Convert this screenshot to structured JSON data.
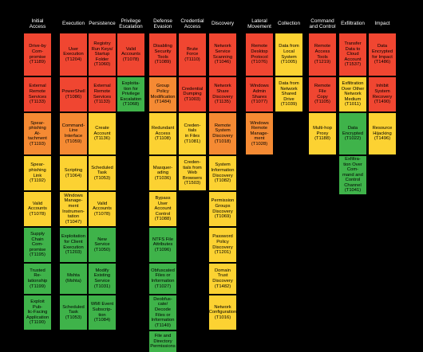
{
  "colors": {
    "red": "#f04631",
    "orange": "#f58a33",
    "yellow": "#fcd232",
    "green": "#3fb34a",
    "background": "#000000",
    "header_text": "#ffffff"
  },
  "tactics": [
    {
      "name": "Initial\nAccess",
      "techniques": [
        {
          "label": "Drive-by\nCom-\npromise\n(T1189)",
          "color": "red"
        },
        {
          "label": "External\nRemote\nServices\n(T1133)",
          "color": "red"
        },
        {
          "label": "Spear-\nphishing At-\ntachment\n(T1193)",
          "color": "orange"
        },
        {
          "label": "Spear-\nphishing\nLink (T1192)",
          "color": "yellow"
        },
        {
          "label": "Valid\nAccounts\n(T1078)",
          "color": "yellow"
        },
        {
          "label": "Supply\nChain Com-\npromise\n(T1195)",
          "color": "green"
        },
        {
          "label": "Trusted Re-\nlationship\n(T1199)",
          "color": "green"
        },
        {
          "label": "Exploit\nPub-\nlic-Facing\nApplication\n(T1190)",
          "color": "green"
        }
      ]
    },
    {
      "name": "Execution",
      "techniques": [
        {
          "label": "User\nExecution\n(T1204)",
          "color": "red"
        },
        {
          "label": "PowerShell\n(T1086)",
          "color": "red"
        },
        {
          "label": "Command-\nLine\nInterface\n(T1059)",
          "color": "orange"
        },
        {
          "label": "Scripting\n(T1064)",
          "color": "yellow"
        },
        {
          "label": "Windows\nManage-\nment\nInstrumen-\ntation\n(T1047)",
          "color": "yellow"
        },
        {
          "label": "Exploitation\nfor Client\nExecution\n(T1203)",
          "color": "green"
        },
        {
          "label": "Mshta\n(Mshta)",
          "color": "green"
        },
        {
          "label": "Scheduled\nTask\n(T1053)",
          "color": "green"
        }
      ]
    },
    {
      "name": "Persistence",
      "techniques": [
        {
          "label": "Registry\nRun Keys/\nStartup\nFolder\n(T1060)",
          "color": "red"
        },
        {
          "label": "External\nRemote\nServices\n(T1133)",
          "color": "red"
        },
        {
          "label": "Create\nAccount\n(T1136)",
          "color": "yellow"
        },
        {
          "label": "Scheduled\nTask\n(T1053)",
          "color": "yellow"
        },
        {
          "label": "Valid\nAccounts\n(T1078)",
          "color": "yellow"
        },
        {
          "label": "New\nService\n(T1050)",
          "color": "green"
        },
        {
          "label": "Modify\nExisting\nService\n(T1031)",
          "color": "green"
        },
        {
          "label": "WMI Event\nSubscrip-\ntion\n(T1084)",
          "color": "green"
        }
      ]
    },
    {
      "name": "Privilege\nEscalation",
      "techniques": [
        {
          "label": "Valid\nAccounts\n(T1078)",
          "color": "red"
        },
        {
          "label": "Exploita-\ntion for\nPrivilege\nEscalation\n(T1068)",
          "color": "green"
        }
      ]
    },
    {
      "name": "Defense\nEvasion",
      "techniques": [
        {
          "label": "Disabling\nSecurity\nTools\n(T1089)",
          "color": "red"
        },
        {
          "label": "Group Policy\nModification\n(T1484)",
          "color": "orange"
        },
        {
          "label": "Redundant\nAccess\n(T1108)",
          "color": "yellow"
        },
        {
          "label": "Masquer-\nading\n(T1036)",
          "color": "yellow"
        },
        {
          "label": "Bypass User\nAccount\nControl\n(T1088)",
          "color": "yellow"
        },
        {
          "label": "NTFS File\nAttributes\n(T1096)",
          "color": "green"
        },
        {
          "label": "Obfuscated\nFiles or\nInformation\n(T1027)",
          "color": "green"
        },
        {
          "label": "Deobfus-\ncate/\nDecode\nFiles or\nInformation\n(T1140)",
          "color": "green"
        },
        {
          "label": "File and\nDirectory\nPermissions",
          "color": "green"
        }
      ]
    },
    {
      "name": "Credential\nAccess",
      "techniques": [
        {
          "label": "Brute\nForce\n(T1110)",
          "color": "red"
        },
        {
          "label": "Credential\nDumping\n(T1003)",
          "color": "red"
        },
        {
          "label": "Creden-\ntials\nin Files\n(T1081)",
          "color": "yellow"
        },
        {
          "label": "Creden-\ntials from\nWeb\nBrowsers\n(T1503)",
          "color": "yellow"
        }
      ]
    },
    {
      "name": "Discovery",
      "techniques": [
        {
          "label": "Network\nService\nScanning\n(T1046)",
          "color": "red"
        },
        {
          "label": "Network\nShare\nDiscovery\n(T1135)",
          "color": "red"
        },
        {
          "label": "Remote\nSystem\nDiscovery\n(T1018)",
          "color": "orange"
        },
        {
          "label": "System\nInformation\nDiscovery\n(T1082)",
          "color": "yellow"
        },
        {
          "label": "Permission\nGroups\nDiscovery\n(T1069)",
          "color": "yellow"
        },
        {
          "label": "Password\nPolicy\nDiscovery\n(T1201)",
          "color": "yellow"
        },
        {
          "label": "Domain Trust\nDiscovery\n(T1482)",
          "color": "yellow"
        },
        {
          "label": "Network\nConfiguration\n(T1016)",
          "color": "yellow"
        }
      ]
    },
    {
      "name": "Lateral\nMovement",
      "techniques": [
        {
          "label": "Remote\nDesktop\nProtocol\n(T1076)",
          "color": "red"
        },
        {
          "label": "Windows\nAdmin\nShares\n(T1077)",
          "color": "red"
        },
        {
          "label": "Windows\nRemote\nManage-\nment\n(T1028)",
          "color": "orange"
        }
      ]
    },
    {
      "name": "Collection",
      "techniques": [
        {
          "label": "Data from\nLocal\nSystem\n(T1005)",
          "color": "yellow"
        },
        {
          "label": "Data from\nNetwork\nShared\nDrive\n(T1039)",
          "color": "yellow"
        }
      ]
    },
    {
      "name": "Command\nand Control",
      "techniques": [
        {
          "label": "Remote\nAccess\nTools\n(T1219)",
          "color": "red"
        },
        {
          "label": "Remote File\nCopy\n(T1105)",
          "color": "red"
        },
        {
          "label": "Multi-hop\nProxy\n(T1188)",
          "color": "yellow"
        }
      ]
    },
    {
      "name": "Exfiltration",
      "techniques": [
        {
          "label": "Transfer\nData to\nCloud\nAccount\n(T1537)",
          "color": "red"
        },
        {
          "label": "Exfiltration\nOver Other\nNetwork\nMedium\n(T1011)",
          "color": "yellow"
        },
        {
          "label": "Data\nEncrypted\n(T1022)",
          "color": "green"
        },
        {
          "label": "Exfiltra-\ntion Over Com-\nmand and\nControl\nChannel\n(T1041)",
          "color": "green"
        }
      ]
    },
    {
      "name": "Impact",
      "techniques": [
        {
          "label": "Data\nEncrypted\nfor Impact\n(T1486)",
          "color": "red"
        },
        {
          "label": "Inhibit\nSystem\nRecovery\n(T1490)",
          "color": "red"
        },
        {
          "label": "Resource\nHijacking\n(T1496)",
          "color": "yellow"
        }
      ]
    }
  ]
}
